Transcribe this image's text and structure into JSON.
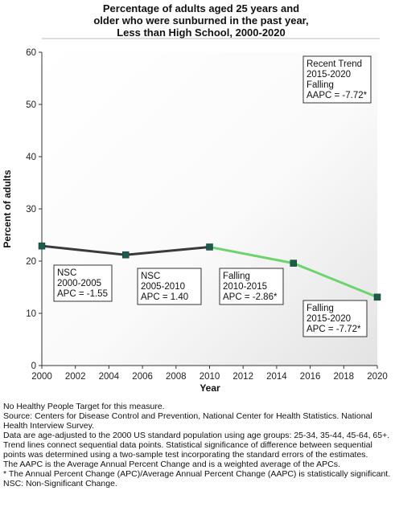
{
  "chart_data": {
    "type": "line",
    "title": [
      "Percentage of adults aged 25 years and",
      "older who were sunburned in the past year,",
      "Less than High School,  2000-2020"
    ],
    "xlabel": "Year",
    "ylabel": "Percent of adults",
    "xlim": [
      2000,
      2020
    ],
    "ylim": [
      0,
      60
    ],
    "xticks": [
      "2000",
      "2002",
      "2004",
      "2006",
      "2008",
      "2010",
      "2012",
      "2014",
      "2016",
      "2018",
      "2020"
    ],
    "yticks": [
      "0",
      "10",
      "20",
      "30",
      "40",
      "50",
      "60"
    ],
    "points": [
      {
        "x": 2000,
        "y": 22.9
      },
      {
        "x": 2005,
        "y": 21.2
      },
      {
        "x": 2010,
        "y": 22.7
      },
      {
        "x": 2015,
        "y": 19.6
      },
      {
        "x": 2020,
        "y": 13.1
      }
    ],
    "segments": [
      {
        "from": 0,
        "to": 1,
        "color": "#3a3a3a"
      },
      {
        "from": 1,
        "to": 2,
        "color": "#3a3a3a"
      },
      {
        "from": 2,
        "to": 3,
        "color": "#6cd46c"
      },
      {
        "from": 3,
        "to": 4,
        "color": "#6cd46c"
      }
    ],
    "marker_color": "#1d5c4c",
    "annotations": [
      {
        "lines": [
          "NSC",
          "2000-2005",
          "APC = -1.55"
        ]
      },
      {
        "lines": [
          "NSC",
          "2005-2010",
          "APC =  1.40"
        ]
      },
      {
        "lines": [
          "Falling",
          "2010-2015",
          "APC = -2.86*"
        ]
      },
      {
        "lines": [
          "Falling",
          "2015-2020",
          "APC = -7.72*"
        ]
      },
      {
        "lines": [
          "Recent Trend",
          "2015-2020",
          "Falling",
          "AAPC = -7.72*"
        ]
      }
    ]
  },
  "footnotes": [
    "No Healthy People Target for this measure.",
    "Source: Centers for Disease Control and Prevention, National Center for Health Statistics. National Health Interview Survey.",
    "Data are age-adjusted to the 2000 US standard population using age groups: 25-34, 35-44, 45-64, 65+.",
    "Trend lines connect sequential data points. Statistical significance of difference between sequential points was determined using a two-sample test incorporating the standard errors of the estimates.",
    "The AAPC is the Average Annual Percent Change and is a weighted average of the APCs.",
    "* The Annual Percent Change (APC)/Average Annual Percent Change (AAPC) is statistically significant.",
    "NSC: Non-Significant Change."
  ]
}
